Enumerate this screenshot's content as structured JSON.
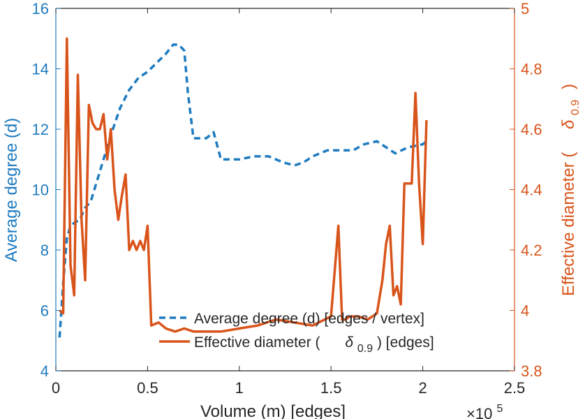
{
  "chart_data": {
    "type": "line",
    "colors": {
      "left": "#1f7bbf",
      "right": "#d9541a",
      "text": "#262626",
      "axis": "#262626"
    },
    "x_axis": {
      "label": "Volume (m) [edges]",
      "range": [
        0,
        250000
      ],
      "ticks": [
        0,
        50000,
        100000,
        150000,
        200000,
        250000
      ],
      "tick_labels": [
        "0",
        "0.5",
        "1",
        "1.5",
        "2",
        "2.5"
      ],
      "exponent": "×10",
      "exponent_power": "5"
    },
    "y_left": {
      "label": "Average degree (d)",
      "range": [
        4,
        16
      ],
      "ticks": [
        4,
        6,
        8,
        10,
        12,
        14,
        16
      ],
      "tick_labels": [
        "4",
        "6",
        "8",
        "10",
        "12",
        "14",
        "16"
      ]
    },
    "y_right": {
      "label": "Effective diameter (",
      "label_symbol": "δ",
      "label_subscript": "0.9",
      "label_close": ")",
      "range": [
        3.8,
        5.0
      ],
      "ticks": [
        3.8,
        4.0,
        4.2,
        4.4,
        4.6,
        4.8,
        5.0
      ],
      "tick_labels": [
        "3.8",
        "4",
        "4.2",
        "4.4",
        "4.6",
        "4.8",
        "5"
      ]
    },
    "legend": {
      "placement": "bottom-center",
      "items": [
        {
          "label": "Average degree (d) [edges / vertex]",
          "series": "avg_degree"
        },
        {
          "label_pre": "Effective diameter (",
          "symbol": "δ",
          "subscript": "0.9",
          "label_post": ") [edges]",
          "series": "eff_diameter"
        }
      ]
    },
    "series": [
      {
        "id": "avg_degree",
        "axis": "left",
        "style": "dashed",
        "x": [
          2000,
          4000,
          6000,
          8000,
          10000,
          13000,
          16000,
          19000,
          22000,
          26000,
          30000,
          35000,
          40000,
          45000,
          50000,
          55000,
          60000,
          64000,
          67000,
          70000,
          72000,
          75000,
          78000,
          82000,
          86000,
          90000,
          94000,
          100000,
          108000,
          116000,
          124000,
          130000,
          135000,
          140000,
          148000,
          156000,
          162000,
          168000,
          175000,
          180000,
          185000,
          192000,
          200000,
          202000
        ],
        "values": [
          5.1,
          6.9,
          8.4,
          8.8,
          8.9,
          9.0,
          9.4,
          9.6,
          10.2,
          11.0,
          11.8,
          12.7,
          13.3,
          13.7,
          13.9,
          14.2,
          14.5,
          14.8,
          14.8,
          14.6,
          13.2,
          11.7,
          11.7,
          11.7,
          11.9,
          11.0,
          11.0,
          11.0,
          11.1,
          11.1,
          10.9,
          10.8,
          10.9,
          11.1,
          11.3,
          11.3,
          11.3,
          11.5,
          11.6,
          11.4,
          11.2,
          11.4,
          11.5,
          11.6
        ]
      },
      {
        "id": "eff_diameter",
        "axis": "right",
        "style": "solid",
        "x": [
          2000,
          4000,
          6000,
          8000,
          10000,
          12000,
          14000,
          16000,
          18000,
          20000,
          22000,
          24000,
          26000,
          28000,
          30000,
          32000,
          34000,
          36000,
          38000,
          40000,
          42000,
          44000,
          46000,
          48000,
          50000,
          52000,
          56000,
          60000,
          65000,
          70000,
          75000,
          80000,
          90000,
          100000,
          110000,
          120000,
          130000,
          140000,
          150000,
          154000,
          156000,
          158000,
          160000,
          165000,
          170000,
          175000,
          178000,
          180000,
          182000,
          184000,
          186000,
          188000,
          190000,
          192000,
          194000,
          196000,
          198000,
          200000,
          202000
        ],
        "values": [
          4.0,
          3.99,
          4.9,
          4.15,
          4.05,
          4.78,
          4.3,
          4.1,
          4.68,
          4.62,
          4.6,
          4.6,
          4.65,
          4.5,
          4.6,
          4.4,
          4.3,
          4.38,
          4.45,
          4.2,
          4.23,
          4.2,
          4.23,
          4.2,
          4.28,
          3.95,
          3.96,
          3.94,
          3.93,
          3.94,
          3.93,
          3.93,
          3.93,
          3.94,
          3.95,
          3.97,
          3.96,
          3.95,
          3.98,
          4.28,
          3.97,
          3.97,
          3.98,
          3.98,
          3.97,
          3.99,
          4.1,
          4.22,
          4.28,
          4.05,
          4.08,
          4.02,
          4.42,
          4.42,
          4.42,
          4.72,
          4.42,
          4.22,
          4.63
        ]
      }
    ]
  }
}
